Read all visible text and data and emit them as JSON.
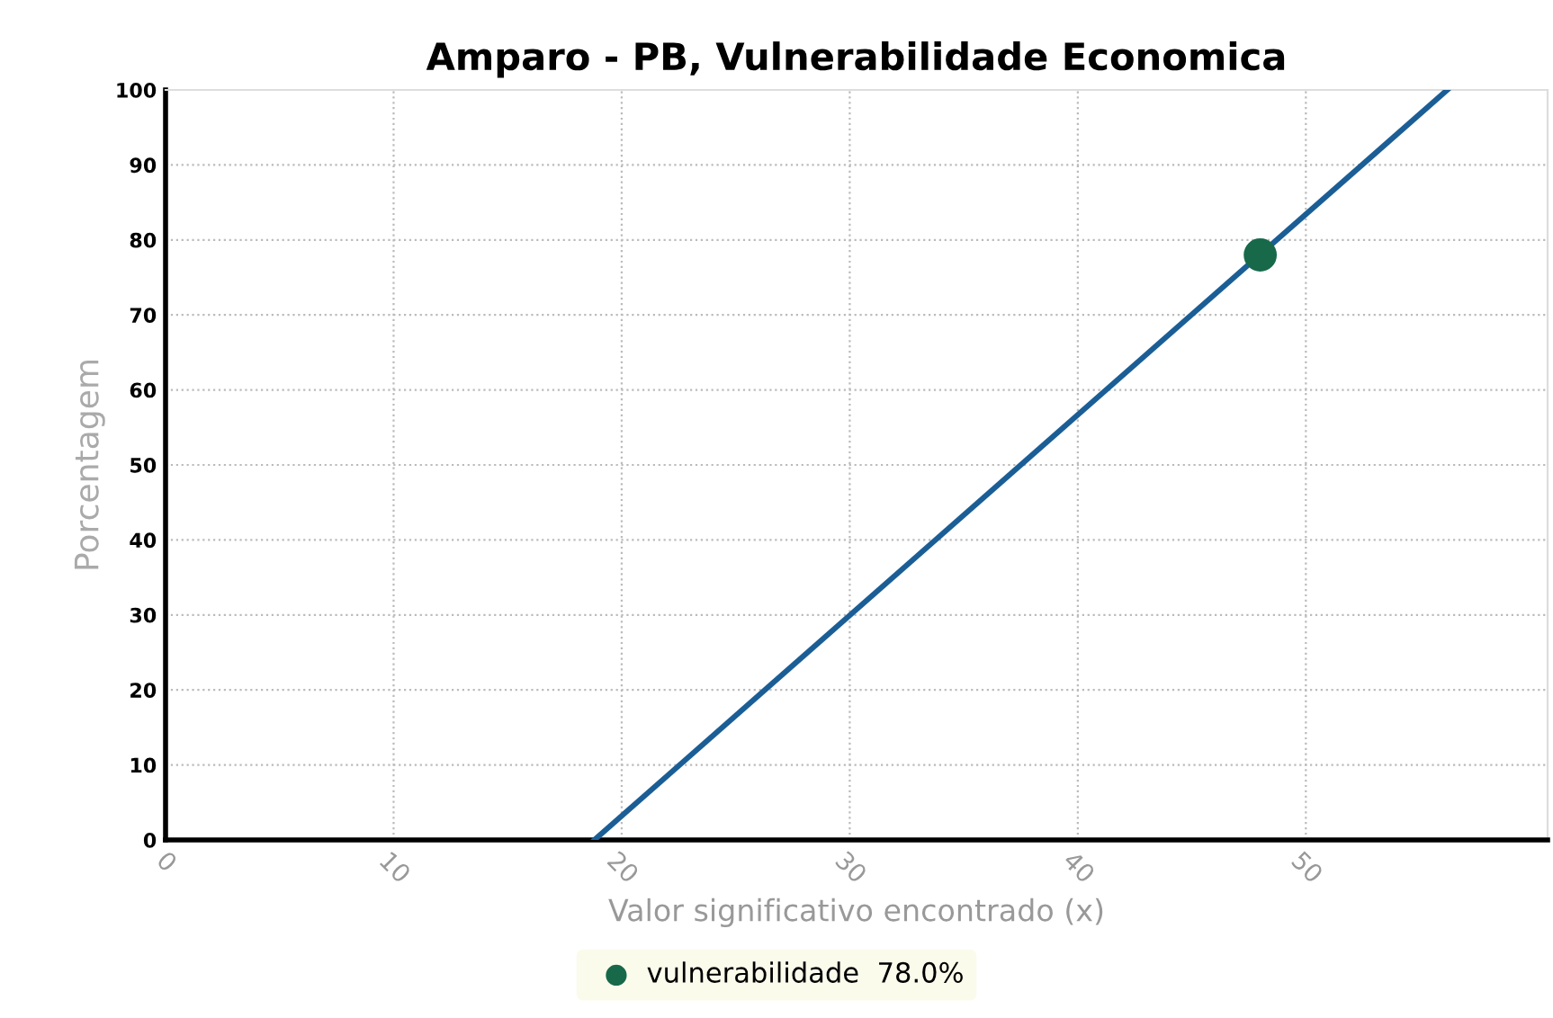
{
  "chart_data": {
    "type": "line",
    "title": "Amparo - PB, Vulnerabilidade Economica",
    "xlabel": "Valor significativo encontrado (x)",
    "ylabel": "Porcentagem",
    "series": [
      {
        "color": "#1b5e96",
        "x": [
          18.8,
          56.2
        ],
        "values": [
          0,
          100
        ]
      },
      {
        "type": "scatter",
        "name": "vulnerabilidade  78.0%",
        "color": "#17694a",
        "x": [
          48
        ],
        "values": [
          78
        ]
      }
    ],
    "xlim": [
      0,
      60.6
    ],
    "xticks": [
      0,
      10,
      20,
      30,
      40,
      50
    ],
    "ylim": [
      0,
      100
    ],
    "yticks": [
      0,
      10,
      20,
      30,
      40,
      50,
      60,
      70,
      80,
      90,
      100
    ],
    "grid": true,
    "legend": "bottom"
  }
}
